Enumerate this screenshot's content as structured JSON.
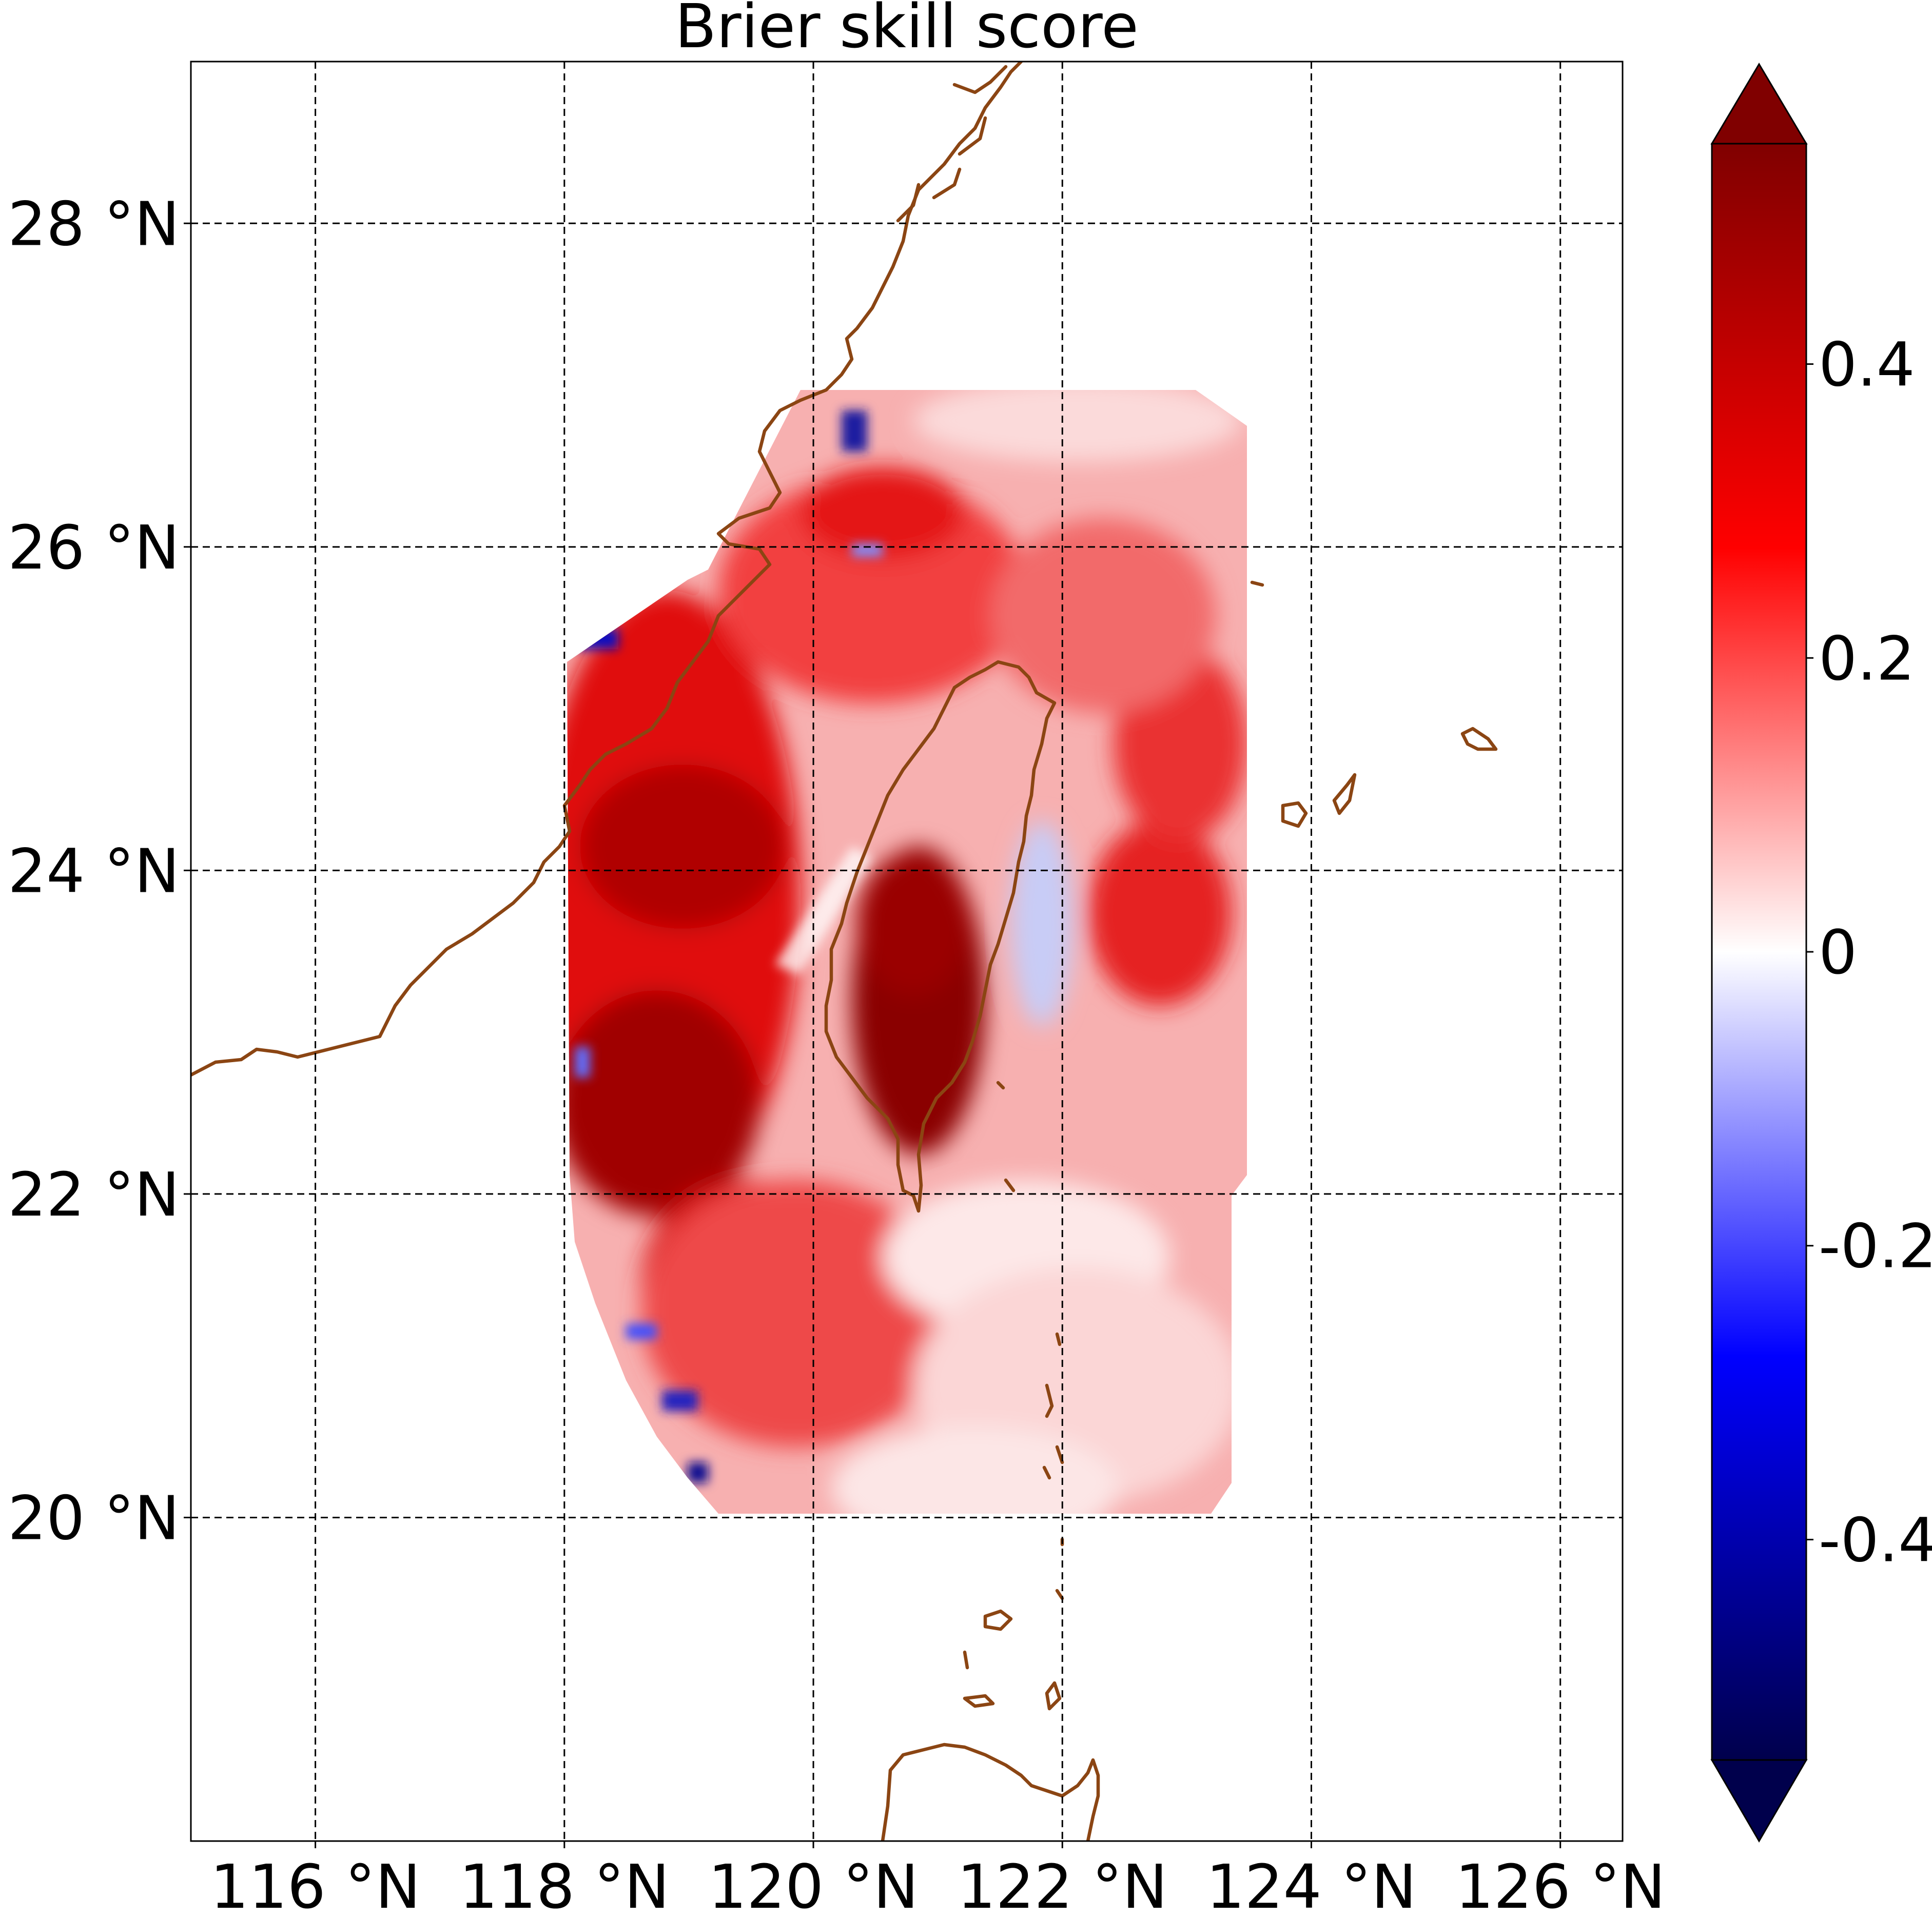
{
  "title": "Brier skill score",
  "map": {
    "lon_range": [
      115.0,
      126.5
    ],
    "lat_range": [
      18.0,
      29.0
    ],
    "gridlines": true,
    "gridline_style": "dashed",
    "lon_ticks": [
      {
        "value": 116,
        "label": "116 °N"
      },
      {
        "value": 118,
        "label": "118 °N"
      },
      {
        "value": 120,
        "label": "120 °N"
      },
      {
        "value": 122,
        "label": "122 °N"
      },
      {
        "value": 124,
        "label": "124 °N"
      },
      {
        "value": 126,
        "label": "126 °N"
      }
    ],
    "lat_ticks": [
      {
        "value": 20,
        "label": "20 °N"
      },
      {
        "value": 22,
        "label": "22 °N"
      },
      {
        "value": 24,
        "label": "24 °N"
      },
      {
        "value": 26,
        "label": "26 °N"
      },
      {
        "value": 28,
        "label": "28 °N"
      }
    ],
    "coastline_color": "#8b4513",
    "field": {
      "variable": "Brier skill score",
      "colormap": "seismic",
      "value_range": [
        -0.55,
        0.55
      ]
    }
  },
  "colorbar": {
    "orientation": "vertical",
    "extend": "both",
    "range": [
      -0.55,
      0.55
    ],
    "ticks": [
      {
        "value": 0.4,
        "label": "0.4"
      },
      {
        "value": 0.2,
        "label": "0.2"
      },
      {
        "value": 0,
        "label": "0"
      },
      {
        "value": -0.2,
        "label": "-0.2"
      },
      {
        "value": -0.4,
        "label": "-0.4"
      }
    ],
    "color_min": "#00004c",
    "color_mid": "#ffffff",
    "color_max": "#800000"
  }
}
